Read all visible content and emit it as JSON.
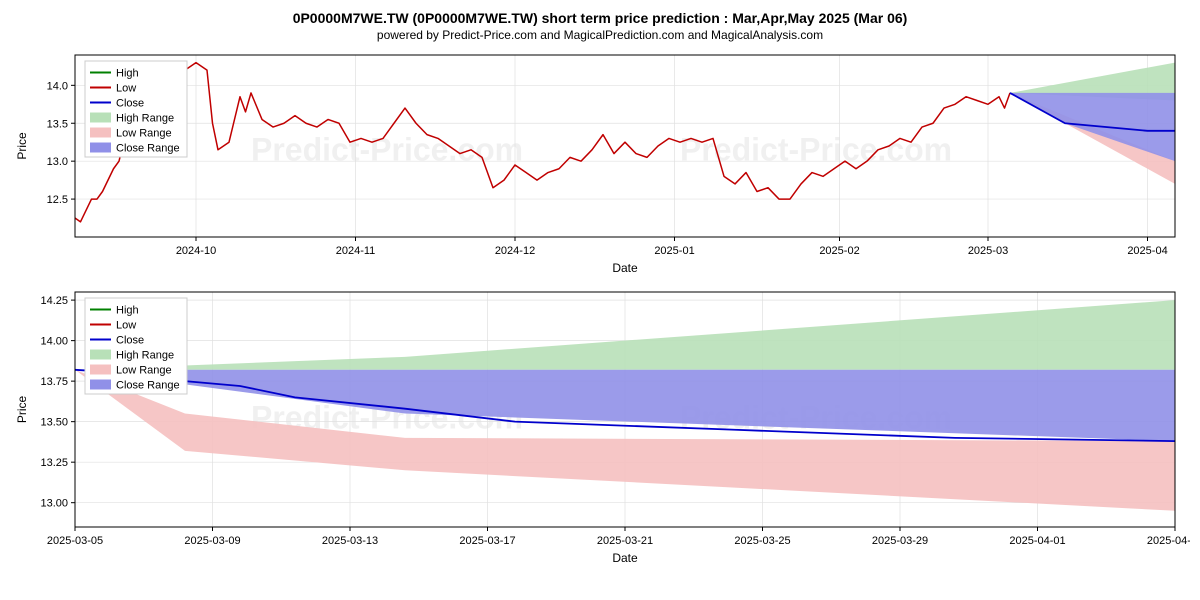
{
  "title": "0P0000M7WE.TW (0P0000M7WE.TW) short term price prediction : Mar,Apr,May 2025 (Mar 06)",
  "subtitle": "powered by Predict-Price.com and MagicalPrediction.com and MagicalAnalysis.com",
  "watermark": "Predict-Price.com",
  "chart1": {
    "type": "line",
    "ylabel": "Price",
    "xlabel": "Date",
    "ylim": [
      12.0,
      14.4
    ],
    "yticks": [
      12.5,
      13.0,
      13.5,
      14.0
    ],
    "xticks": [
      "2024-10",
      "2024-11",
      "2024-12",
      "2025-01",
      "2025-02",
      "2025-03",
      "2025-04"
    ],
    "xtick_positions": [
      0.11,
      0.255,
      0.4,
      0.545,
      0.695,
      0.83,
      0.975
    ],
    "background_color": "#ffffff",
    "grid_color": "#e0e0e0",
    "legend": [
      {
        "label": "High",
        "color": "#008000",
        "type": "line"
      },
      {
        "label": "Low",
        "color": "#c00000",
        "type": "line"
      },
      {
        "label": "Close",
        "color": "#0000cc",
        "type": "line"
      },
      {
        "label": "High Range",
        "color": "#b8e0b8",
        "type": "patch"
      },
      {
        "label": "Low Range",
        "color": "#f5c0c0",
        "type": "patch"
      },
      {
        "label": "Close Range",
        "color": "#9090e8",
        "type": "patch"
      }
    ],
    "line_low": {
      "color": "#c00000",
      "width": 1.5,
      "x": [
        0,
        0.005,
        0.01,
        0.015,
        0.02,
        0.025,
        0.03,
        0.035,
        0.04,
        0.045,
        0.05,
        0.06,
        0.07,
        0.08,
        0.09,
        0.1,
        0.11,
        0.12,
        0.125,
        0.13,
        0.14,
        0.15,
        0.155,
        0.16,
        0.17,
        0.18,
        0.19,
        0.2,
        0.21,
        0.22,
        0.23,
        0.24,
        0.25,
        0.26,
        0.27,
        0.28,
        0.29,
        0.3,
        0.31,
        0.32,
        0.33,
        0.34,
        0.35,
        0.36,
        0.37,
        0.38,
        0.39,
        0.4,
        0.41,
        0.42,
        0.43,
        0.44,
        0.45,
        0.46,
        0.47,
        0.48,
        0.49,
        0.5,
        0.51,
        0.52,
        0.53,
        0.54,
        0.55,
        0.56,
        0.57,
        0.58,
        0.59,
        0.6,
        0.61,
        0.62,
        0.63,
        0.64,
        0.65,
        0.66,
        0.67,
        0.68,
        0.69,
        0.7,
        0.71,
        0.72,
        0.73,
        0.74,
        0.75,
        0.76,
        0.77,
        0.78,
        0.79,
        0.8,
        0.81,
        0.82,
        0.83,
        0.84,
        0.845,
        0.85
      ],
      "y": [
        12.25,
        12.2,
        12.35,
        12.5,
        12.5,
        12.6,
        12.75,
        12.9,
        13.0,
        13.3,
        13.5,
        13.6,
        13.85,
        13.75,
        13.9,
        14.2,
        14.3,
        14.2,
        13.5,
        13.15,
        13.25,
        13.85,
        13.65,
        13.9,
        13.55,
        13.45,
        13.5,
        13.6,
        13.5,
        13.45,
        13.55,
        13.5,
        13.25,
        13.3,
        13.25,
        13.3,
        13.5,
        13.7,
        13.5,
        13.35,
        13.3,
        13.2,
        13.1,
        13.15,
        13.05,
        12.65,
        12.75,
        12.95,
        12.85,
        12.75,
        12.85,
        12.9,
        13.05,
        13.0,
        13.15,
        13.35,
        13.1,
        13.25,
        13.1,
        13.05,
        13.2,
        13.3,
        13.25,
        13.3,
        13.25,
        13.3,
        12.8,
        12.7,
        12.85,
        12.6,
        12.65,
        12.5,
        12.5,
        12.7,
        12.85,
        12.8,
        12.9,
        13.0,
        12.9,
        13.0,
        13.15,
        13.2,
        13.3,
        13.25,
        13.45,
        13.5,
        13.7,
        13.75,
        13.85,
        13.8,
        13.75,
        13.85,
        13.7,
        13.9
      ]
    },
    "line_close": {
      "color": "#0000cc",
      "width": 1.8,
      "x": [
        0.85,
        0.9,
        0.975,
        1.0
      ],
      "y": [
        13.9,
        13.5,
        13.4,
        13.4
      ]
    },
    "high_range": {
      "color": "#b8e0b8",
      "x": [
        0.85,
        1.0
      ],
      "y_top": [
        13.9,
        14.3
      ],
      "y_bot": [
        13.9,
        13.8
      ]
    },
    "close_range": {
      "color": "#9090e8",
      "x": [
        0.85,
        0.9,
        1.0
      ],
      "y_top": [
        13.9,
        13.9,
        13.9
      ],
      "y_bot": [
        13.9,
        13.5,
        13.0
      ]
    },
    "low_range": {
      "color": "#f5c0c0",
      "x": [
        0.85,
        1.0
      ],
      "y_top": [
        13.9,
        13.0
      ],
      "y_bot": [
        13.9,
        12.7
      ]
    }
  },
  "chart2": {
    "type": "line",
    "ylabel": "Price",
    "xlabel": "Date",
    "ylim": [
      12.85,
      14.3
    ],
    "yticks": [
      13.0,
      13.25,
      13.5,
      13.75,
      14.0,
      14.25
    ],
    "xticks": [
      "2025-03-05",
      "2025-03-09",
      "2025-03-13",
      "2025-03-17",
      "2025-03-21",
      "2025-03-25",
      "2025-03-29",
      "2025-04-01",
      "2025-04-05"
    ],
    "xtick_positions": [
      0.0,
      0.125,
      0.25,
      0.375,
      0.5,
      0.625,
      0.75,
      0.875,
      1.0
    ],
    "background_color": "#ffffff",
    "grid_color": "#e0e0e0",
    "legend": [
      {
        "label": "High",
        "color": "#008000",
        "type": "line"
      },
      {
        "label": "Low",
        "color": "#c00000",
        "type": "line"
      },
      {
        "label": "Close",
        "color": "#0000cc",
        "type": "line"
      },
      {
        "label": "High Range",
        "color": "#b8e0b8",
        "type": "patch"
      },
      {
        "label": "Low Range",
        "color": "#f5c0c0",
        "type": "patch"
      },
      {
        "label": "Close Range",
        "color": "#9090e8",
        "type": "patch"
      }
    ],
    "line_close": {
      "color": "#0000cc",
      "width": 1.8,
      "x": [
        0.0,
        0.05,
        0.1,
        0.15,
        0.2,
        0.3,
        0.4,
        0.6,
        0.8,
        1.0
      ],
      "y": [
        13.82,
        13.8,
        13.75,
        13.72,
        13.65,
        13.58,
        13.5,
        13.45,
        13.4,
        13.38
      ]
    },
    "high_range": {
      "color": "#b8e0b8",
      "x": [
        0.0,
        0.3,
        1.0
      ],
      "y_top": [
        13.82,
        13.9,
        14.25
      ],
      "y_bot": [
        13.82,
        13.82,
        13.82
      ]
    },
    "close_range": {
      "color": "#9090e8",
      "x": [
        0.0,
        0.3,
        1.0
      ],
      "y_top": [
        13.82,
        13.82,
        13.82
      ],
      "y_bot": [
        13.82,
        13.55,
        13.38
      ]
    },
    "low_range": {
      "color": "#f5c0c0",
      "x": [
        0.0,
        0.1,
        0.3,
        1.0
      ],
      "y_top": [
        13.82,
        13.55,
        13.4,
        13.38
      ],
      "y_bot": [
        13.82,
        13.32,
        13.2,
        12.95
      ]
    }
  }
}
